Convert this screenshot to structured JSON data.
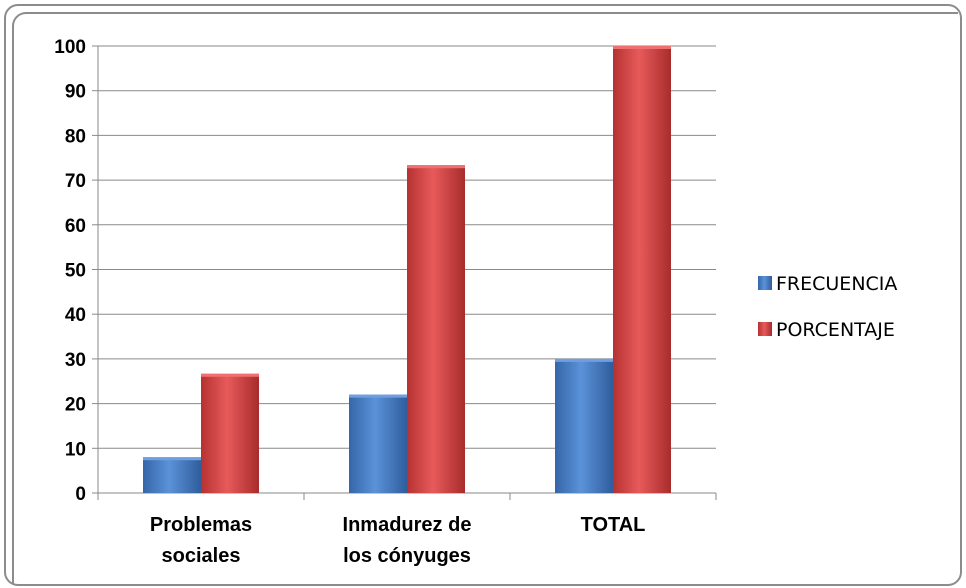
{
  "chart_data": {
    "type": "bar",
    "categories": [
      [
        "Problemas",
        "sociales"
      ],
      [
        "Inmadurez de",
        "los cónyuges"
      ],
      [
        "TOTAL"
      ]
    ],
    "series": [
      {
        "name": "FRECUENCIA",
        "values": [
          8,
          22,
          30
        ],
        "color": "#4a7fc6"
      },
      {
        "name": "PORCENTAJE",
        "values": [
          26.67,
          73.33,
          100
        ],
        "color": "#d94545"
      }
    ],
    "ylim": [
      0,
      100
    ],
    "yticks": [
      0,
      10,
      20,
      30,
      40,
      50,
      60,
      70,
      80,
      90,
      100
    ],
    "grid": true,
    "legend_position": "right"
  }
}
